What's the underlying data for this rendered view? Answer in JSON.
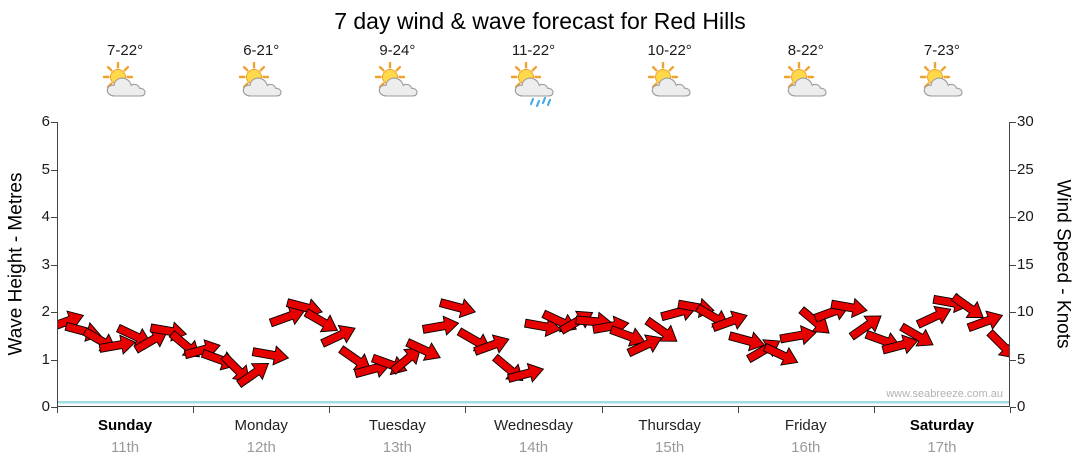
{
  "title": "7 day wind & wave forecast for Red Hills",
  "watermark": "www.seabreeze.com.au",
  "colors": {
    "wind_arrow": "#e60000",
    "wind_arrow_outline": "#000000",
    "wave_line": "#9edde6",
    "axis_line": "#444444",
    "date_text": "#9a9a9a"
  },
  "left_axis": {
    "label": "Wave Height - Metres",
    "min": 0,
    "max": 6,
    "ticks": [
      0,
      1,
      2,
      3,
      4,
      5,
      6
    ]
  },
  "right_axis": {
    "label": "Wind Speed - Knots",
    "min": 0,
    "max": 30,
    "ticks": [
      0,
      5,
      10,
      15,
      20,
      25,
      30
    ]
  },
  "days": [
    {
      "name": "Sunday",
      "date": "11th",
      "temp": "7-22°",
      "icon": "sun-cloud",
      "weekend": true
    },
    {
      "name": "Monday",
      "date": "12th",
      "temp": "6-21°",
      "icon": "sun-cloud",
      "weekend": false
    },
    {
      "name": "Tuesday",
      "date": "13th",
      "temp": "9-24°",
      "icon": "sun-cloud",
      "weekend": false
    },
    {
      "name": "Wednesday",
      "date": "14th",
      "temp": "11-22°",
      "icon": "sun-cloud-rain",
      "weekend": false
    },
    {
      "name": "Thursday",
      "date": "15th",
      "temp": "10-22°",
      "icon": "sun-cloud",
      "weekend": false
    },
    {
      "name": "Friday",
      "date": "16th",
      "temp": "8-22°",
      "icon": "sun-cloud",
      "weekend": false
    },
    {
      "name": "Saturday",
      "date": "17th",
      "temp": "7-23°",
      "icon": "sun-cloud",
      "weekend": true
    }
  ],
  "chart_data": {
    "type": "wind-arrow time series with flat wave-height line",
    "points_per_day": 8,
    "x_days": [
      "Sunday 11th",
      "Monday 12th",
      "Tuesday 13th",
      "Wednesday 14th",
      "Thursday 15th",
      "Friday 16th",
      "Saturday 17th"
    ],
    "wind": {
      "unit": "knots",
      "ylim": [
        0,
        30
      ],
      "speeds": [
        9,
        8,
        7,
        6.5,
        7.5,
        7,
        8,
        6.5,
        6,
        5,
        4,
        3.5,
        5.5,
        9.5,
        10.5,
        9,
        7.5,
        5,
        4,
        4.5,
        5,
        6,
        8.5,
        10.5,
        7,
        6.5,
        4,
        3.5,
        8.5,
        9,
        9,
        9,
        8.5,
        7.5,
        6.5,
        8,
        10,
        10.5,
        9.5,
        9,
        7,
        6,
        5.5,
        7.5,
        9,
        10,
        10.5,
        8.5,
        7,
        6.5,
        7.5,
        9.5,
        11,
        10.5,
        9,
        6.5
      ],
      "directions_deg": [
        -20,
        15,
        30,
        -10,
        25,
        -30,
        10,
        40,
        -15,
        20,
        45,
        -35,
        10,
        -20,
        15,
        30,
        -25,
        35,
        -15,
        20,
        -40,
        25,
        -10,
        15,
        30,
        -20,
        40,
        -15,
        10,
        25,
        -30,
        5,
        -10,
        20,
        -25,
        35,
        -15,
        10,
        30,
        -20,
        15,
        -30,
        25,
        -10,
        40,
        -20,
        10,
        -35,
        20,
        -15,
        30,
        -25,
        10,
        35,
        -20,
        45
      ]
    },
    "wave": {
      "unit": "metres",
      "ylim": [
        0,
        6
      ],
      "constant_value": 0.1
    }
  }
}
